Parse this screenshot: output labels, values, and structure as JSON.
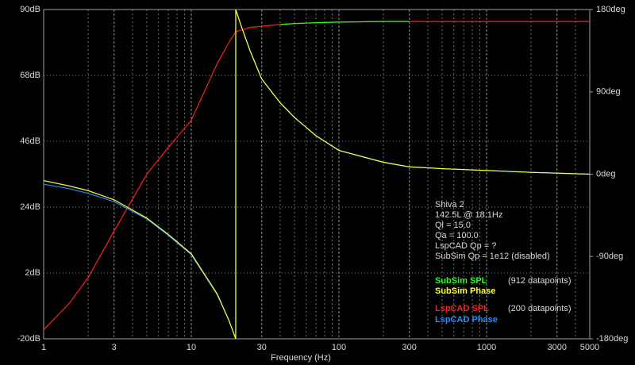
{
  "chart_data": {
    "type": "line",
    "xlabel": "Frequency (Hz)",
    "xscale": "log",
    "xlim": [
      1,
      5000
    ],
    "xticks": [
      1,
      3,
      10,
      30,
      100,
      300,
      1000,
      3000,
      5000
    ],
    "xminor": [
      2,
      4,
      5,
      6,
      7,
      8,
      9,
      20,
      40,
      50,
      60,
      70,
      80,
      90,
      200,
      400,
      500,
      600,
      700,
      800,
      900,
      2000,
      4000
    ],
    "ylim": [
      -20,
      90
    ],
    "yticks": [
      {
        "value": -20,
        "label": "-20dB"
      },
      {
        "value": 2,
        "label": "2dB"
      },
      {
        "value": 24,
        "label": "24dB"
      },
      {
        "value": 46,
        "label": "46dB"
      },
      {
        "value": 68,
        "label": "68dB"
      },
      {
        "value": 90,
        "label": "90dB"
      }
    ],
    "y2lim": [
      -180,
      180
    ],
    "y2ticks": [
      {
        "value": -180,
        "label": "-180deg"
      },
      {
        "value": -90,
        "label": "-90deg"
      },
      {
        "value": 0,
        "label": "0deg"
      },
      {
        "value": 90,
        "label": "90deg"
      },
      {
        "value": 180,
        "label": "180deg"
      }
    ],
    "grid": true,
    "annotations": [
      "Shiva 2",
      "142.5L @ 18.1Hz",
      "Ql = 15.0",
      "Qa = 100.0",
      "LspCAD Qp = ?",
      "SubSim Qp = 1e12 (disabled)"
    ],
    "x": [
      1,
      1.5,
      2,
      3,
      5,
      7,
      10,
      15,
      18,
      20,
      20,
      22,
      25,
      30,
      40,
      50,
      70,
      100,
      200,
      300,
      500,
      1000,
      2000,
      5000
    ],
    "series": [
      {
        "name": "LspCAD SPL",
        "note": "(200 datapoints)",
        "color": "#ff2020",
        "axis": "y",
        "values": [
          -17,
          -8,
          0.4,
          16,
          35,
          44,
          53,
          72,
          79,
          82.6,
          82.6,
          83.2,
          84,
          84.4,
          85,
          85.3,
          85.6,
          85.8,
          86,
          86,
          86,
          86,
          86,
          86
        ]
      },
      {
        "name": "SubSim SPL",
        "note": "(912 datapoints)",
        "color": "#20ff20",
        "axis": "y",
        "values": [
          null,
          null,
          null,
          null,
          null,
          null,
          null,
          null,
          null,
          null,
          null,
          null,
          null,
          null,
          85,
          85.3,
          85.6,
          85.8,
          86,
          86,
          null,
          null,
          null,
          null
        ]
      },
      {
        "name": "LspCAD Phase",
        "color": "#2090ff",
        "axis": "y2",
        "values": [
          -11,
          -16,
          -21,
          -30,
          -49,
          -67,
          -88,
          -132,
          -160,
          -180,
          180,
          160,
          135,
          104,
          78,
          62,
          42,
          26,
          13,
          8,
          6,
          4,
          2,
          0
        ]
      },
      {
        "name": "SubSim Phase",
        "color": "#ffff30",
        "axis": "y2",
        "values": [
          -7,
          -13,
          -18,
          -28,
          -48,
          -66,
          -87,
          -131,
          -160,
          -180,
          180,
          160,
          135,
          104,
          78,
          62,
          42,
          26,
          13,
          8,
          6,
          4,
          2,
          0
        ]
      }
    ],
    "legend_order": [
      1,
      3,
      0,
      2
    ]
  }
}
